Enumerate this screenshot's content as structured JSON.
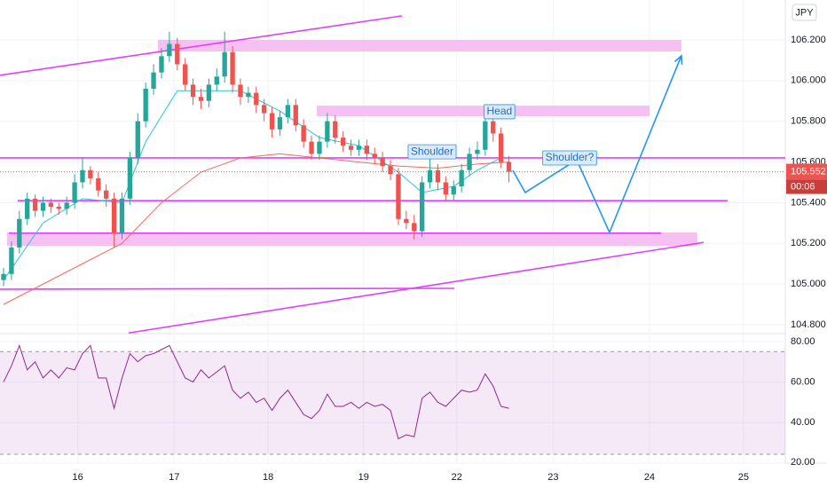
{
  "chart_data": {
    "type": "candlestick",
    "currency": "JPY",
    "last_price": {
      "value": 105.552,
      "label": "105.552"
    },
    "countdown": "00:06",
    "xlim": [
      -0.45,
      99
    ],
    "xticks": [
      {
        "value": 9.4,
        "label": "16"
      },
      {
        "value": 21.6,
        "label": "17"
      },
      {
        "value": 33.5,
        "label": "18"
      },
      {
        "value": 45.6,
        "label": "19"
      },
      {
        "value": 57.4,
        "label": "22"
      },
      {
        "value": 69.6,
        "label": "23"
      },
      {
        "value": 81.8,
        "label": "24"
      },
      {
        "value": 93.7,
        "label": "25"
      }
    ],
    "ylim": [
      104.761,
      106.396
    ],
    "yticks": [
      {
        "value": 104.8,
        "label": "104.800"
      },
      {
        "value": 105.0,
        "label": "105.000"
      },
      {
        "value": 105.2,
        "label": "105.200"
      },
      {
        "value": 105.4,
        "label": "105.400"
      },
      {
        "value": 105.6,
        "label": "105.600"
      },
      {
        "value": 105.8,
        "label": "105.800"
      },
      {
        "value": 106.0,
        "label": "106.000"
      },
      {
        "value": 106.2,
        "label": "106.200"
      }
    ],
    "grid": true,
    "up_color": "#26a69a",
    "down_color": "#ef5350",
    "open": [
      105.02,
      105.05,
      105.18,
      105.32,
      105.42,
      105.36,
      105.4,
      105.38,
      105.37,
      105.4,
      105.5,
      105.56,
      105.52,
      105.46,
      105.42,
      105.25,
      105.42,
      105.62,
      105.8,
      105.96,
      106.04,
      106.12,
      106.18,
      106.08,
      105.98,
      105.92,
      105.9,
      105.98,
      106.02,
      106.14,
      105.98,
      105.92,
      105.94,
      105.88,
      105.84,
      105.76,
      105.82,
      105.88,
      105.78,
      105.7,
      105.64,
      105.7,
      105.8,
      105.72,
      105.68,
      105.66,
      105.68,
      105.64,
      105.62,
      105.58,
      105.54,
      105.32,
      105.3,
      105.26,
      105.5,
      105.56,
      105.5,
      105.44,
      105.48,
      105.56,
      105.64,
      105.66,
      105.8,
      105.74,
      105.6
    ],
    "high": [
      105.08,
      105.21,
      105.36,
      105.45,
      105.44,
      105.43,
      105.42,
      105.4,
      105.43,
      105.54,
      105.62,
      105.58,
      105.55,
      105.49,
      105.45,
      105.45,
      105.65,
      105.84,
      105.99,
      106.08,
      106.16,
      106.24,
      106.21,
      106.11,
      106.01,
      105.96,
      106.01,
      106.06,
      106.24,
      106.17,
      106.01,
      105.97,
      105.97,
      105.91,
      105.87,
      105.85,
      105.91,
      105.91,
      105.81,
      105.73,
      105.73,
      105.84,
      105.83,
      105.75,
      105.71,
      105.71,
      105.71,
      105.67,
      105.65,
      105.61,
      105.57,
      105.36,
      105.34,
      105.53,
      105.62,
      105.59,
      105.53,
      105.51,
      105.59,
      105.67,
      105.7,
      105.86,
      105.83,
      105.77,
      105.63
    ],
    "low": [
      104.99,
      105.02,
      105.15,
      105.29,
      105.33,
      105.33,
      105.35,
      105.34,
      105.34,
      105.37,
      105.47,
      105.49,
      105.43,
      105.38,
      105.18,
      105.22,
      105.39,
      105.59,
      105.77,
      105.93,
      106.01,
      106.09,
      106.05,
      105.95,
      105.88,
      105.86,
      105.87,
      105.95,
      105.99,
      105.94,
      105.88,
      105.89,
      105.84,
      105.8,
      105.72,
      105.73,
      105.79,
      105.75,
      105.67,
      105.61,
      105.61,
      105.67,
      105.69,
      105.65,
      105.63,
      105.63,
      105.61,
      105.59,
      105.55,
      105.51,
      105.29,
      105.27,
      105.22,
      105.23,
      105.47,
      105.46,
      105.41,
      105.41,
      105.45,
      105.53,
      105.61,
      105.63,
      105.7,
      105.57,
      105.5
    ],
    "close": [
      105.05,
      105.18,
      105.32,
      105.42,
      105.36,
      105.4,
      105.38,
      105.37,
      105.4,
      105.5,
      105.56,
      105.52,
      105.46,
      105.42,
      105.25,
      105.42,
      105.62,
      105.8,
      105.96,
      106.04,
      106.12,
      106.18,
      106.08,
      105.98,
      105.92,
      105.9,
      105.98,
      106.02,
      106.14,
      105.98,
      105.92,
      105.94,
      105.88,
      105.84,
      105.76,
      105.82,
      105.88,
      105.78,
      105.7,
      105.64,
      105.7,
      105.8,
      105.72,
      105.68,
      105.66,
      105.68,
      105.64,
      105.62,
      105.58,
      105.54,
      105.32,
      105.3,
      105.26,
      105.5,
      105.56,
      105.5,
      105.44,
      105.48,
      105.56,
      105.64,
      105.66,
      105.8,
      105.74,
      105.6,
      105.552
    ],
    "overlays": [
      {
        "color": "#26c6da",
        "x": [
          0,
          5,
          10,
          15,
          18,
          22,
          26,
          30,
          35,
          40,
          45,
          50,
          53,
          57,
          60,
          63
        ],
        "values": [
          105.02,
          105.3,
          105.42,
          105.4,
          105.7,
          105.95,
          105.95,
          105.95,
          105.85,
          105.72,
          105.68,
          105.55,
          105.45,
          105.48,
          105.56,
          105.62
        ]
      },
      {
        "color": "#ef6c5a",
        "x": [
          0,
          10,
          15,
          20,
          25,
          30,
          35,
          40,
          45,
          50,
          55,
          60,
          64
        ],
        "values": [
          104.9,
          105.1,
          105.2,
          105.4,
          105.55,
          105.62,
          105.64,
          105.62,
          105.6,
          105.58,
          105.57,
          105.59,
          105.6
        ]
      }
    ],
    "lines": [
      {
        "color": "#e040fb",
        "x": [
          -0.45,
          50.45
        ],
        "values": [
          106.026,
          106.318
        ]
      },
      {
        "color": "#e040fb",
        "x": [
          -0.45,
          99
        ],
        "values": [
          105.62,
          105.62
        ]
      },
      {
        "color": "#e040fb",
        "x": [
          1.8,
          91.68
        ],
        "values": [
          105.41,
          105.41
        ]
      },
      {
        "color": "#e040fb",
        "x": [
          0.67,
          83.26
        ],
        "values": [
          105.25,
          105.25
        ]
      },
      {
        "color": "#e040fb",
        "x": [
          -0.45,
          57.08
        ],
        "values": [
          104.975,
          104.979
        ]
      },
      {
        "color": "#e040fb",
        "x": [
          15.84,
          88.65
        ],
        "values": [
          104.76,
          105.205
        ]
      }
    ],
    "zones": [
      {
        "color": "#f5b5f0",
        "x": [
          19.55,
          85.84
        ],
        "values": [
          106.2,
          106.143
        ]
      },
      {
        "color": "#f5b5f0",
        "x": [
          39.66,
          81.8
        ],
        "values": [
          105.877,
          105.825
        ]
      },
      {
        "color": "#f5b5f0",
        "x": [
          0.45,
          87.86
        ],
        "values": [
          105.254,
          105.188
        ]
      }
    ],
    "projection": {
      "color": "#2196f3",
      "x": [
        64.49,
        66.07,
        72.58,
        76.74,
        85.84
      ],
      "values": [
        105.559,
        105.45,
        105.611,
        105.254,
        106.122
      ]
    },
    "annotations": [
      {
        "text": "Head",
        "x": 62.8,
        "y": 105.847
      },
      {
        "text": "Shoulder",
        "x": 54.27,
        "y": 105.65
      },
      {
        "text": "Shoulder?",
        "x": 71.69,
        "y": 105.62
      }
    ],
    "rsi": {
      "color": "#8e2a8e",
      "ylim": [
        20,
        83
      ],
      "band": [
        24.4,
        75
      ],
      "yticks": [
        {
          "value": 20,
          "label": "20.00"
        },
        {
          "value": 40,
          "label": "40.00"
        },
        {
          "value": 60,
          "label": "60.00"
        },
        {
          "value": 80,
          "label": "80.00"
        }
      ],
      "values": [
        60,
        68,
        78,
        66,
        70,
        62,
        66,
        62,
        67,
        66,
        74,
        78,
        62,
        62,
        47,
        62,
        74,
        70,
        73,
        74,
        76,
        78,
        70,
        62,
        60,
        66,
        62,
        65,
        68,
        56,
        52,
        55,
        50,
        52,
        46,
        52,
        56,
        50,
        44,
        42,
        46,
        54,
        48,
        48,
        50,
        47,
        50,
        48,
        49,
        46,
        32,
        34,
        33,
        52,
        55,
        50,
        48,
        52,
        56,
        55,
        56,
        64,
        58,
        48,
        47
      ]
    }
  }
}
